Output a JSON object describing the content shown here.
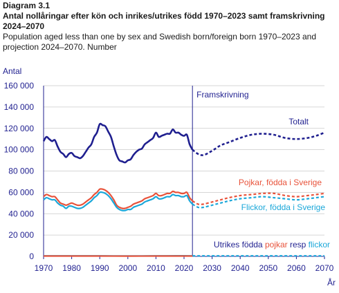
{
  "header": {
    "diagram": "Diagram 3.1",
    "title": "Antal nollåringar efter kön och inrikes/utrikes född 1970–2023 samt framskrivning 2024–2070",
    "subtitle": "Population aged less than one by sex and Swedish born/foreign born 1970–2023 and projection 2024–2070. Number"
  },
  "chart_data": {
    "type": "line",
    "ylabel": "Antal",
    "xlabel": "År",
    "xlim": [
      1970,
      2070
    ],
    "ylim": [
      0,
      160000
    ],
    "x_ticks": [
      1970,
      1980,
      1990,
      2000,
      2010,
      2020,
      2030,
      2040,
      2050,
      2060,
      2070
    ],
    "y_ticks": [
      0,
      20000,
      40000,
      60000,
      80000,
      100000,
      120000,
      140000,
      160000
    ],
    "y_tick_labels": [
      "0",
      "20 000",
      "40 000",
      "60 000",
      "80 000",
      "100 000",
      "120 000",
      "140 000",
      "160 000"
    ],
    "projection_start": 2023,
    "projection_label": "Framskrivning",
    "legend_labels": {
      "total": "Totalt",
      "boys": "Pojkar, födda i Sverige",
      "girls": "Flickor, födda i Sverige",
      "foreign_prefix": "Utrikes födda ",
      "foreign_boys": "pojkar",
      "foreign_mid": " resp ",
      "foreign_girls": "flickor"
    },
    "colors": {
      "total": "#1f1f8f",
      "boys": "#e8523a",
      "girls": "#1aa7d9",
      "projection_line": "#1f1f8f",
      "axis": "#1f1f8f"
    },
    "series": [
      {
        "key": "total",
        "x": [
          1970,
          1971,
          1972,
          1973,
          1974,
          1975,
          1976,
          1977,
          1978,
          1979,
          1980,
          1981,
          1982,
          1983,
          1984,
          1985,
          1986,
          1987,
          1988,
          1989,
          1990,
          1991,
          1992,
          1993,
          1994,
          1995,
          1996,
          1997,
          1998,
          1999,
          2000,
          2001,
          2002,
          2003,
          2004,
          2005,
          2006,
          2007,
          2008,
          2009,
          2010,
          2011,
          2012,
          2013,
          2014,
          2015,
          2016,
          2017,
          2018,
          2019,
          2020,
          2021,
          2022,
          2023
        ],
        "values": [
          108000,
          112000,
          110000,
          108000,
          109000,
          103000,
          98000,
          96000,
          93000,
          96000,
          97000,
          94000,
          93000,
          92000,
          94000,
          98000,
          102000,
          105000,
          112000,
          116000,
          124000,
          123000,
          122000,
          117000,
          112000,
          103000,
          95000,
          90000,
          89000,
          88000,
          90000,
          91000,
          95000,
          98000,
          100000,
          101000,
          105000,
          107000,
          109000,
          111000,
          116000,
          112000,
          113000,
          114000,
          115000,
          115000,
          119000,
          116000,
          116000,
          114000,
          113000,
          114000,
          105000,
          100000
        ]
      },
      {
        "key": "total",
        "projected": true,
        "x": [
          2023,
          2025,
          2027,
          2030,
          2033,
          2036,
          2040,
          2044,
          2048,
          2052,
          2056,
          2060,
          2064,
          2067,
          2070
        ],
        "values": [
          100000,
          96000,
          95000,
          99000,
          104000,
          107000,
          111000,
          114000,
          115000,
          114000,
          111000,
          110000,
          111000,
          113000,
          116000
        ]
      },
      {
        "key": "boys",
        "x": [
          1970,
          1971,
          1972,
          1973,
          1974,
          1975,
          1976,
          1977,
          1978,
          1979,
          1980,
          1981,
          1982,
          1983,
          1984,
          1985,
          1986,
          1987,
          1988,
          1989,
          1990,
          1991,
          1992,
          1993,
          1994,
          1995,
          1996,
          1997,
          1998,
          1999,
          2000,
          2001,
          2002,
          2003,
          2004,
          2005,
          2006,
          2007,
          2008,
          2009,
          2010,
          2011,
          2012,
          2013,
          2014,
          2015,
          2016,
          2017,
          2018,
          2019,
          2020,
          2021,
          2022,
          2023
        ],
        "values": [
          56000,
          58000,
          57000,
          56000,
          56000,
          53000,
          50000,
          49000,
          48000,
          49000,
          50000,
          49000,
          48000,
          48000,
          49000,
          51000,
          53000,
          55000,
          58000,
          60000,
          63000,
          63000,
          62000,
          60000,
          57000,
          53000,
          48000,
          46000,
          45000,
          45000,
          46000,
          47000,
          49000,
          50000,
          51000,
          52000,
          54000,
          55000,
          56000,
          57000,
          59000,
          57000,
          57000,
          58000,
          59000,
          59000,
          61000,
          60000,
          60000,
          59000,
          59000,
          60000,
          55000,
          52000
        ]
      },
      {
        "key": "boys",
        "projected": true,
        "x": [
          2023,
          2025,
          2027,
          2030,
          2033,
          2036,
          2040,
          2044,
          2048,
          2052,
          2056,
          2060,
          2064,
          2067,
          2070
        ],
        "values": [
          52000,
          49000,
          49000,
          51000,
          53000,
          55000,
          57000,
          58000,
          59000,
          59000,
          57000,
          56000,
          57000,
          58000,
          59000
        ]
      },
      {
        "key": "girls",
        "x": [
          1970,
          1971,
          1972,
          1973,
          1974,
          1975,
          1976,
          1977,
          1978,
          1979,
          1980,
          1981,
          1982,
          1983,
          1984,
          1985,
          1986,
          1987,
          1988,
          1989,
          1990,
          1991,
          1992,
          1993,
          1994,
          1995,
          1996,
          1997,
          1998,
          1999,
          2000,
          2001,
          2002,
          2003,
          2004,
          2005,
          2006,
          2007,
          2008,
          2009,
          2010,
          2011,
          2012,
          2013,
          2014,
          2015,
          2016,
          2017,
          2018,
          2019,
          2020,
          2021,
          2022,
          2023
        ],
        "values": [
          53000,
          55000,
          54000,
          53000,
          53000,
          50000,
          48000,
          47000,
          45000,
          47000,
          47000,
          46000,
          45000,
          45000,
          46000,
          48000,
          50000,
          52000,
          55000,
          57000,
          60000,
          60000,
          59000,
          57000,
          54000,
          50000,
          46000,
          44000,
          43000,
          43000,
          44000,
          44000,
          46000,
          47000,
          48000,
          49000,
          51000,
          52000,
          53000,
          54000,
          56000,
          54000,
          54000,
          55000,
          56000,
          56000,
          58000,
          57000,
          57000,
          56000,
          56000,
          57000,
          52000,
          49000
        ]
      },
      {
        "key": "girls",
        "projected": true,
        "x": [
          2023,
          2025,
          2027,
          2030,
          2033,
          2036,
          2040,
          2044,
          2048,
          2052,
          2056,
          2060,
          2064,
          2067,
          2070
        ],
        "values": [
          49000,
          46000,
          46000,
          48000,
          50000,
          52000,
          54000,
          55000,
          56000,
          55000,
          54000,
          53000,
          54000,
          55000,
          56000
        ]
      },
      {
        "key": "foreign_girls",
        "x": [
          1970,
          1980,
          1990,
          2000,
          2010,
          2020,
          2023
        ],
        "values": [
          500,
          500,
          500,
          400,
          500,
          600,
          500
        ]
      },
      {
        "key": "foreign_girls",
        "projected": true,
        "x": [
          2023,
          2040,
          2055,
          2070
        ],
        "values": [
          500,
          500,
          500,
          500
        ]
      },
      {
        "key": "foreign_boys",
        "x": [
          1970,
          1980,
          1990,
          2000,
          2010,
          2020,
          2023
        ],
        "values": [
          300,
          300,
          300,
          250,
          300,
          350,
          300
        ]
      }
    ]
  }
}
